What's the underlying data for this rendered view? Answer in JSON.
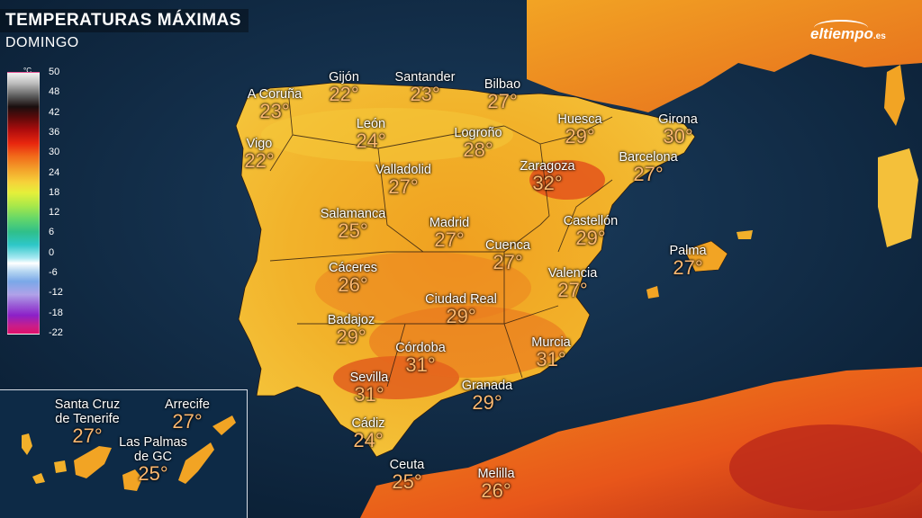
{
  "header": {
    "title": "TEMPERATURAS MÁXIMAS",
    "subtitle": "DOMINGO"
  },
  "brand": {
    "name": "eltiempo",
    "suffix": ".es"
  },
  "legend": {
    "unit": "°C",
    "ticks": [
      "50",
      "48",
      "42",
      "36",
      "30",
      "24",
      "18",
      "12",
      "6",
      "0",
      "-6",
      "-12",
      "-18",
      "-22"
    ]
  },
  "colors": {
    "sea": "#0c2238",
    "land_low": "#f2c230",
    "land_mid": "#f29a1c",
    "land_high": "#e4521a",
    "temp_text": "#fbb871"
  },
  "cities": [
    {
      "name": "A Coruña",
      "temp": "23°"
    },
    {
      "name": "Gijón",
      "temp": "22°"
    },
    {
      "name": "Santander",
      "temp": "23°"
    },
    {
      "name": "Bilbao",
      "temp": "27°"
    },
    {
      "name": "Vigo",
      "temp": "22°"
    },
    {
      "name": "León",
      "temp": "24°"
    },
    {
      "name": "Logroño",
      "temp": "28°"
    },
    {
      "name": "Huesca",
      "temp": "29°"
    },
    {
      "name": "Girona",
      "temp": "30°"
    },
    {
      "name": "Valladolid",
      "temp": "27°"
    },
    {
      "name": "Zaragoza",
      "temp": "32°"
    },
    {
      "name": "Barcelona",
      "temp": "27°"
    },
    {
      "name": "Salamanca",
      "temp": "25°"
    },
    {
      "name": "Madrid",
      "temp": "27°"
    },
    {
      "name": "Castellón",
      "temp": "29°"
    },
    {
      "name": "Cuenca",
      "temp": "27°"
    },
    {
      "name": "Palma",
      "temp": "27°"
    },
    {
      "name": "Cáceres",
      "temp": "26°"
    },
    {
      "name": "Valencia",
      "temp": "27°"
    },
    {
      "name": "Ciudad Real",
      "temp": "29°"
    },
    {
      "name": "Badajoz",
      "temp": "29°"
    },
    {
      "name": "Córdoba",
      "temp": "31°"
    },
    {
      "name": "Murcia",
      "temp": "31°"
    },
    {
      "name": "Sevilla",
      "temp": "31°"
    },
    {
      "name": "Granada",
      "temp": "29°"
    },
    {
      "name": "Cádiz",
      "temp": "24°"
    },
    {
      "name": "Ceuta",
      "temp": "25°"
    },
    {
      "name": "Melilla",
      "temp": "26°"
    }
  ],
  "canarias": [
    {
      "name": "Santa Cruz de Tenerife",
      "line1": "Santa Cruz",
      "line2": "de Tenerife",
      "temp": "27°"
    },
    {
      "name": "Arrecife",
      "line1": "Arrecife",
      "line2": "",
      "temp": "27°"
    },
    {
      "name": "Las Palmas de GC",
      "line1": "Las Palmas",
      "line2": "de GC",
      "temp": "25°"
    }
  ]
}
